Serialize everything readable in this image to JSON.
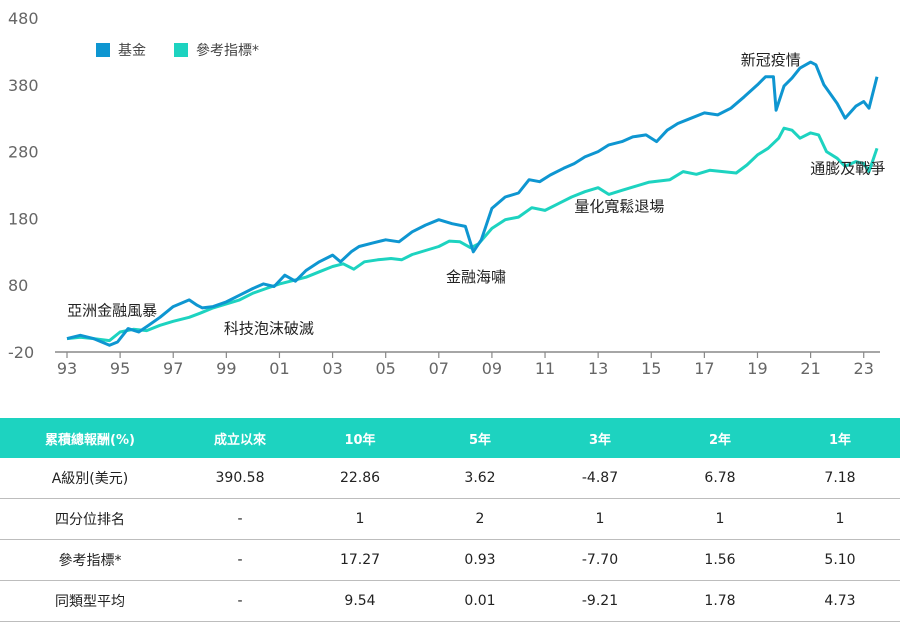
{
  "colors": {
    "fund": "#0e96d1",
    "benchmark": "#1dd3c0",
    "axis": "#888888",
    "header_bg": "#1dd3c0"
  },
  "chart_data": {
    "type": "line",
    "ylim": [
      -20,
      480
    ],
    "yticks": [
      480,
      380,
      280,
      180,
      80,
      -20
    ],
    "xlim": [
      1993,
      2023.5
    ],
    "xticks": [
      {
        "x": 1993,
        "label": "93"
      },
      {
        "x": 1995,
        "label": "95"
      },
      {
        "x": 1997,
        "label": "97"
      },
      {
        "x": 1999,
        "label": "99"
      },
      {
        "x": 2001,
        "label": "01"
      },
      {
        "x": 2003,
        "label": "03"
      },
      {
        "x": 2005,
        "label": "05"
      },
      {
        "x": 2007,
        "label": "07"
      },
      {
        "x": 2009,
        "label": "09"
      },
      {
        "x": 2011,
        "label": "11"
      },
      {
        "x": 2013,
        "label": "13"
      },
      {
        "x": 2015,
        "label": "15"
      },
      {
        "x": 2017,
        "label": "17"
      },
      {
        "x": 2019,
        "label": "19"
      },
      {
        "x": 2021,
        "label": "21"
      },
      {
        "x": 2023,
        "label": "23"
      }
    ],
    "legend": [
      "基金",
      "參考指標*"
    ],
    "series": [
      {
        "name": "基金",
        "points": [
          [
            1993,
            0
          ],
          [
            1993.5,
            5
          ],
          [
            1994,
            0
          ],
          [
            1994.6,
            -10
          ],
          [
            1994.9,
            -5
          ],
          [
            1995.3,
            15
          ],
          [
            1995.7,
            10
          ],
          [
            1996,
            18
          ],
          [
            1996.5,
            32
          ],
          [
            1997,
            48
          ],
          [
            1997.6,
            58
          ],
          [
            1997.9,
            50
          ],
          [
            1998.1,
            46
          ],
          [
            1998.5,
            48
          ],
          [
            1999,
            55
          ],
          [
            1999.5,
            65
          ],
          [
            2000,
            75
          ],
          [
            2000.4,
            82
          ],
          [
            2000.8,
            78
          ],
          [
            2001.2,
            95
          ],
          [
            2001.6,
            86
          ],
          [
            2002,
            102
          ],
          [
            2002.5,
            115
          ],
          [
            2003,
            125
          ],
          [
            2003.3,
            115
          ],
          [
            2003.7,
            130
          ],
          [
            2004,
            138
          ],
          [
            2004.5,
            143
          ],
          [
            2005,
            148
          ],
          [
            2005.5,
            145
          ],
          [
            2006,
            160
          ],
          [
            2006.5,
            170
          ],
          [
            2007,
            178
          ],
          [
            2007.5,
            172
          ],
          [
            2008,
            168
          ],
          [
            2008.3,
            130
          ],
          [
            2008.6,
            148
          ],
          [
            2009,
            195
          ],
          [
            2009.5,
            212
          ],
          [
            2010,
            218
          ],
          [
            2010.4,
            238
          ],
          [
            2010.8,
            235
          ],
          [
            2011.2,
            245
          ],
          [
            2011.7,
            255
          ],
          [
            2012.1,
            262
          ],
          [
            2012.5,
            272
          ],
          [
            2013,
            280
          ],
          [
            2013.4,
            290
          ],
          [
            2013.9,
            295
          ],
          [
            2014.3,
            302
          ],
          [
            2014.8,
            305
          ],
          [
            2015.2,
            295
          ],
          [
            2015.6,
            312
          ],
          [
            2016,
            322
          ],
          [
            2016.5,
            330
          ],
          [
            2017,
            338
          ],
          [
            2017.5,
            335
          ],
          [
            2018,
            345
          ],
          [
            2018.5,
            362
          ],
          [
            2019,
            380
          ],
          [
            2019.3,
            392
          ],
          [
            2019.6,
            392
          ],
          [
            2019.7,
            342
          ],
          [
            2020,
            378
          ],
          [
            2020.3,
            390
          ],
          [
            2020.6,
            405
          ],
          [
            2021,
            414
          ],
          [
            2021.2,
            410
          ],
          [
            2021.5,
            380
          ],
          [
            2022,
            352
          ],
          [
            2022.3,
            330
          ],
          [
            2022.7,
            348
          ],
          [
            2023,
            355
          ],
          [
            2023.2,
            345
          ],
          [
            2023.5,
            392
          ]
        ]
      },
      {
        "name": "參考指標*",
        "points": [
          [
            1993,
            0
          ],
          [
            1993.5,
            2
          ],
          [
            1994,
            0
          ],
          [
            1994.6,
            -3
          ],
          [
            1995,
            10
          ],
          [
            1995.5,
            14
          ],
          [
            1996,
            12
          ],
          [
            1996.5,
            20
          ],
          [
            1997,
            26
          ],
          [
            1997.6,
            32
          ],
          [
            1998,
            38
          ],
          [
            1998.5,
            46
          ],
          [
            1999,
            52
          ],
          [
            1999.5,
            58
          ],
          [
            2000,
            68
          ],
          [
            2000.5,
            75
          ],
          [
            2001,
            82
          ],
          [
            2001.6,
            88
          ],
          [
            2002,
            92
          ],
          [
            2002.5,
            100
          ],
          [
            2003,
            108
          ],
          [
            2003.4,
            112
          ],
          [
            2003.8,
            104
          ],
          [
            2004.2,
            115
          ],
          [
            2004.7,
            118
          ],
          [
            2005.2,
            120
          ],
          [
            2005.6,
            118
          ],
          [
            2006,
            126
          ],
          [
            2006.5,
            132
          ],
          [
            2007,
            138
          ],
          [
            2007.4,
            146
          ],
          [
            2007.8,
            145
          ],
          [
            2008.2,
            136
          ],
          [
            2008.5,
            142
          ],
          [
            2009,
            165
          ],
          [
            2009.5,
            178
          ],
          [
            2010,
            182
          ],
          [
            2010.5,
            196
          ],
          [
            2011,
            192
          ],
          [
            2011.5,
            202
          ],
          [
            2012,
            212
          ],
          [
            2012.5,
            220
          ],
          [
            2013,
            226
          ],
          [
            2013.4,
            216
          ],
          [
            2013.9,
            222
          ],
          [
            2014.4,
            228
          ],
          [
            2014.9,
            234
          ],
          [
            2015.3,
            236
          ],
          [
            2015.7,
            238
          ],
          [
            2016.2,
            250
          ],
          [
            2016.7,
            246
          ],
          [
            2017.2,
            252
          ],
          [
            2017.7,
            250
          ],
          [
            2018.2,
            248
          ],
          [
            2018.6,
            260
          ],
          [
            2019,
            275
          ],
          [
            2019.4,
            285
          ],
          [
            2019.8,
            300
          ],
          [
            2020,
            315
          ],
          [
            2020.3,
            312
          ],
          [
            2020.6,
            300
          ],
          [
            2021,
            308
          ],
          [
            2021.3,
            305
          ],
          [
            2021.6,
            280
          ],
          [
            2022,
            270
          ],
          [
            2022.3,
            258
          ],
          [
            2022.7,
            265
          ],
          [
            2023,
            262
          ],
          [
            2023.2,
            250
          ],
          [
            2023.5,
            285
          ]
        ]
      }
    ],
    "annotations": [
      {
        "text": "亞洲金融風暴",
        "x": 1994.7,
        "y": 35
      },
      {
        "text": "科技泡沫破滅",
        "x": 2000.6,
        "y": 8
      },
      {
        "text": "金融海嘯",
        "x": 2008.4,
        "y": 85
      },
      {
        "text": "量化寬鬆退場",
        "x": 2013.8,
        "y": 190
      },
      {
        "text": "新冠疫情",
        "x": 2019.5,
        "y": 410
      },
      {
        "text": "通膨及戰爭",
        "x": 2022.4,
        "y": 247
      }
    ]
  },
  "table": {
    "headers": [
      "累積總報酬(%)",
      "成立以來",
      "10年",
      "5年",
      "3年",
      "2年",
      "1年"
    ],
    "rows": [
      [
        "A級別(美元)",
        "390.58",
        "22.86",
        "3.62",
        "-4.87",
        "6.78",
        "7.18"
      ],
      [
        "四分位排名",
        "-",
        "1",
        "2",
        "1",
        "1",
        "1"
      ],
      [
        "參考指標*",
        "-",
        "17.27",
        "0.93",
        "-7.70",
        "1.56",
        "5.10"
      ],
      [
        "同類型平均",
        "-",
        "9.54",
        "0.01",
        "-9.21",
        "1.78",
        "4.73"
      ]
    ]
  }
}
